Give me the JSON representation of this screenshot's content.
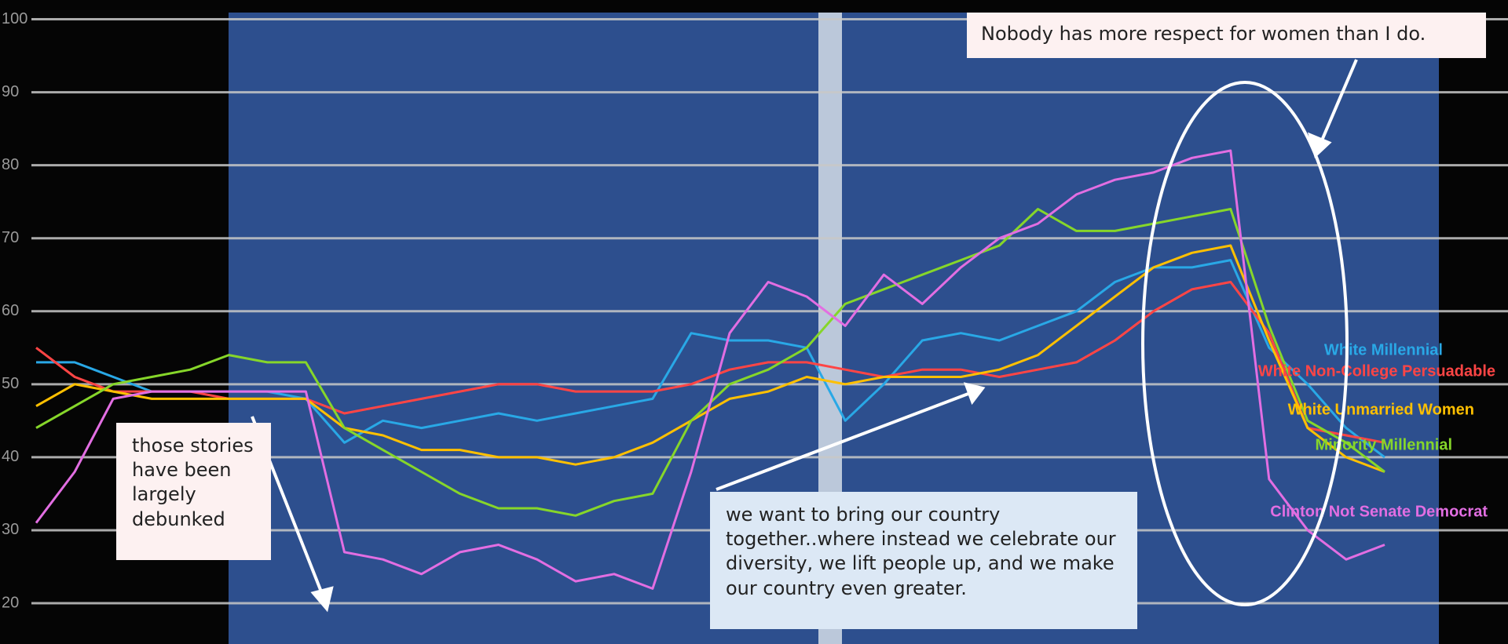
{
  "chart_data": {
    "type": "line",
    "categories": [
      null,
      null,
      null,
      null,
      null,
      null,
      null,
      null,
      null,
      null,
      null,
      null,
      null,
      null,
      null,
      null,
      null,
      null,
      null,
      null,
      null,
      null,
      null,
      null,
      null,
      null,
      null,
      null,
      null,
      null,
      null,
      null,
      null,
      null,
      null,
      null
    ],
    "series": [
      {
        "name": "White Millennial",
        "color": "#29a8e6",
        "values": [
          53,
          53,
          51,
          49,
          49,
          49,
          49,
          48,
          42,
          45,
          44,
          45,
          46,
          45,
          46,
          47,
          48,
          57,
          56,
          56,
          55,
          45,
          50,
          56,
          57,
          56,
          58,
          60,
          64,
          66,
          66,
          67,
          55,
          50,
          44,
          40
        ]
      },
      {
        "name": "White Non-College Persuadable",
        "color": "#ff4545",
        "values": [
          55,
          51,
          49,
          49,
          49,
          48,
          48,
          48,
          46,
          47,
          48,
          49,
          50,
          50,
          49,
          49,
          49,
          50,
          52,
          53,
          53,
          52,
          51,
          52,
          52,
          51,
          52,
          53,
          56,
          60,
          63,
          64,
          57,
          44,
          43,
          42
        ]
      },
      {
        "name": "White Unmarried Women",
        "color": "#ffc000",
        "values": [
          47,
          50,
          49,
          48,
          48,
          48,
          48,
          48,
          44,
          43,
          41,
          41,
          40,
          40,
          39,
          40,
          42,
          45,
          48,
          49,
          51,
          50,
          51,
          51,
          51,
          52,
          54,
          58,
          62,
          66,
          68,
          69,
          56,
          44,
          40,
          38
        ]
      },
      {
        "name": "Minority Millennial",
        "color": "#86d62a",
        "values": [
          44,
          47,
          50,
          51,
          52,
          54,
          53,
          53,
          44,
          41,
          38,
          35,
          33,
          33,
          32,
          34,
          35,
          45,
          50,
          52,
          55,
          61,
          63,
          65,
          67,
          69,
          74,
          71,
          71,
          72,
          73,
          74,
          58,
          45,
          42,
          38
        ]
      },
      {
        "name": "Clinton Not Senate Democrat",
        "color": "#e26ee2",
        "values": [
          31,
          38,
          48,
          49,
          49,
          49,
          49,
          49,
          27,
          26,
          24,
          27,
          28,
          26,
          23,
          24,
          22,
          38,
          57,
          64,
          62,
          58,
          65,
          61,
          66,
          70,
          72,
          76,
          78,
          79,
          81,
          82,
          37,
          30,
          26,
          28
        ]
      }
    ],
    "ylim": [
      20,
      100
    ],
    "yticks": [
      20,
      30,
      40,
      50,
      60,
      70,
      80,
      90,
      100
    ],
    "grid": true,
    "annotations": [
      "Nobody has more respect for women than I do.",
      "those stories have been largely debunked",
      "we want to bring our country together..where instead we celebrate our diversity, we lift people up, and we make our country even greater."
    ]
  }
}
